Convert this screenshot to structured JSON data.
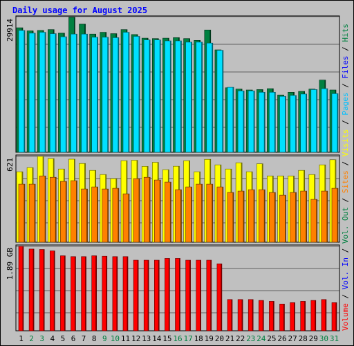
{
  "chart_data": {
    "type": "bar",
    "title": "Daily usage for August 2025",
    "categories": [
      "1",
      "2",
      "3",
      "4",
      "5",
      "6",
      "7",
      "8",
      "9",
      "10",
      "11",
      "12",
      "13",
      "14",
      "15",
      "16",
      "17",
      "18",
      "19",
      "20",
      "21",
      "22",
      "23",
      "24",
      "25",
      "26",
      "27",
      "28",
      "29",
      "30",
      "31"
    ],
    "weekend_days": [
      "2",
      "3",
      "9",
      "10",
      "16",
      "17",
      "23",
      "24",
      "30",
      "31"
    ],
    "panels": [
      {
        "id": "hits-files-pages",
        "scale_label": "29914",
        "ylim": [
          0,
          29914
        ],
        "series": [
          {
            "name": "Hits",
            "color": "#008040",
            "values": [
              27600,
              26900,
              27000,
              27200,
              26400,
              29914,
              28400,
              26200,
              26600,
              26300,
              27200,
              26100,
              25300,
              25200,
              25300,
              25400,
              25200,
              24800,
              27100,
              22700,
              14300,
              14000,
              13800,
              13900,
              14100,
              12700,
              13300,
              13500,
              14000,
              16000,
              13800
            ]
          },
          {
            "name": "Files",
            "color": "#00e0ff",
            "values": [
              27000,
              26400,
              26600,
              26300,
              25600,
              26200,
              26200,
              25500,
              25500,
              25400,
              26600,
              25700,
              24900,
              24900,
              24700,
              24700,
              24400,
              24400,
              24200,
              22600,
              14400,
              13600,
              13600,
              13300,
              13300,
              12400,
              12600,
              12900,
              13900,
              14100,
              13000
            ]
          },
          {
            "name": "Pages",
            "color": "#0000ff",
            "values": []
          }
        ]
      },
      {
        "id": "visits-sites",
        "scale_label": "621",
        "ylim": [
          0,
          621
        ],
        "series": [
          {
            "name": "Visits",
            "color": "#ffff00",
            "values": [
              510,
              540,
              621,
              605,
              530,
              601,
              570,
              520,
              490,
              460,
              590,
              593,
              549,
              578,
              525,
              550,
              590,
              510,
              600,
              560,
              530,
              575,
              510,
              568,
              480,
              480,
              480,
              520,
              490,
              560,
              597
            ]
          },
          {
            "name": "Sites",
            "color": "#ff8000",
            "values": [
              420,
              420,
              480,
              470,
              440,
              445,
              385,
              400,
              385,
              390,
              350,
              460,
              470,
              450,
              435,
              380,
              400,
              420,
              420,
              400,
              360,
              370,
              380,
              380,
              360,
              340,
              360,
              370,
              310,
              370,
              390
            ]
          }
        ]
      },
      {
        "id": "volume",
        "scale_label": "1.89 GB",
        "ylim": [
          0,
          1.89
        ],
        "series": [
          {
            "name": "Volume",
            "color": "#ff0000",
            "values": [
              1.89,
              1.83,
              1.82,
              1.79,
              1.68,
              1.66,
              1.66,
              1.68,
              1.67,
              1.66,
              1.66,
              1.58,
              1.58,
              1.58,
              1.62,
              1.62,
              1.58,
              1.58,
              1.58,
              1.5,
              0.7,
              0.7,
              0.7,
              0.68,
              0.66,
              0.6,
              0.63,
              0.66,
              0.68,
              0.7,
              0.63
            ]
          },
          {
            "name": "Vol. In",
            "color": "#0000ff",
            "values": []
          },
          {
            "name": "Vol. Out",
            "color": "#008040",
            "values": []
          }
        ]
      }
    ],
    "right_labels": [
      {
        "text": "Hits",
        "color": "#008040"
      },
      {
        "text": " / ",
        "color": "#000000"
      },
      {
        "text": "Files",
        "color": "#0000ff"
      },
      {
        "text": " / ",
        "color": "#000000"
      },
      {
        "text": "Pages",
        "color": "#00c0ff"
      },
      {
        "text": " / ",
        "color": "#000000"
      },
      {
        "text": "Visits",
        "color": "#ffff00"
      },
      {
        "text": " / ",
        "color": "#000000"
      },
      {
        "text": "Sites",
        "color": "#ff8000"
      },
      {
        "text": " / ",
        "color": "#000000"
      },
      {
        "text": "Vol. Out",
        "color": "#008040"
      },
      {
        "text": " / ",
        "color": "#000000"
      },
      {
        "text": "Vol. In",
        "color": "#0000ff"
      },
      {
        "text": " / ",
        "color": "#000000"
      },
      {
        "text": "Volume",
        "color": "#ff0000"
      }
    ],
    "colors": {
      "background": "#c0c0c0",
      "title": "#0000ff",
      "weekday_label": "#000000",
      "weekend_label": "#008040",
      "grid": "#000000"
    }
  }
}
